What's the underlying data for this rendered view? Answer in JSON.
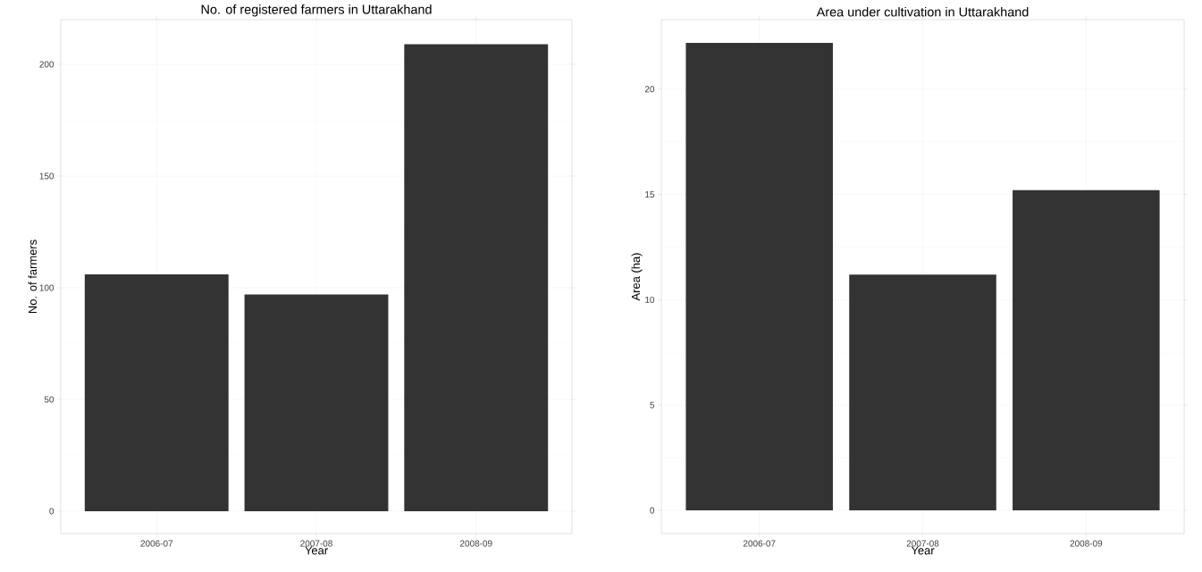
{
  "chart_data": [
    {
      "type": "bar",
      "title": "No. of registered farmers in Uttarakhand",
      "xlabel": "Year",
      "ylabel": "No. of farmers",
      "categories": [
        "2006-07",
        "2007-08",
        "2008-09"
      ],
      "values": [
        106,
        97,
        209
      ],
      "color": "#333333",
      "ylim": [
        -10,
        220
      ],
      "yticks": [
        0,
        50,
        100,
        150,
        200
      ],
      "grid": true
    },
    {
      "type": "bar",
      "title": "Area under cultivation in Uttarakhand",
      "xlabel": "Year",
      "ylabel": "Area (ha)",
      "categories": [
        "2006-07",
        "2007-08",
        "2008-09"
      ],
      "values": [
        22.2,
        11.2,
        15.2
      ],
      "color": "#333333",
      "ylim": [
        -1.1,
        23.3
      ],
      "yticks": [
        0,
        5,
        10,
        15,
        20
      ],
      "grid": true
    }
  ]
}
